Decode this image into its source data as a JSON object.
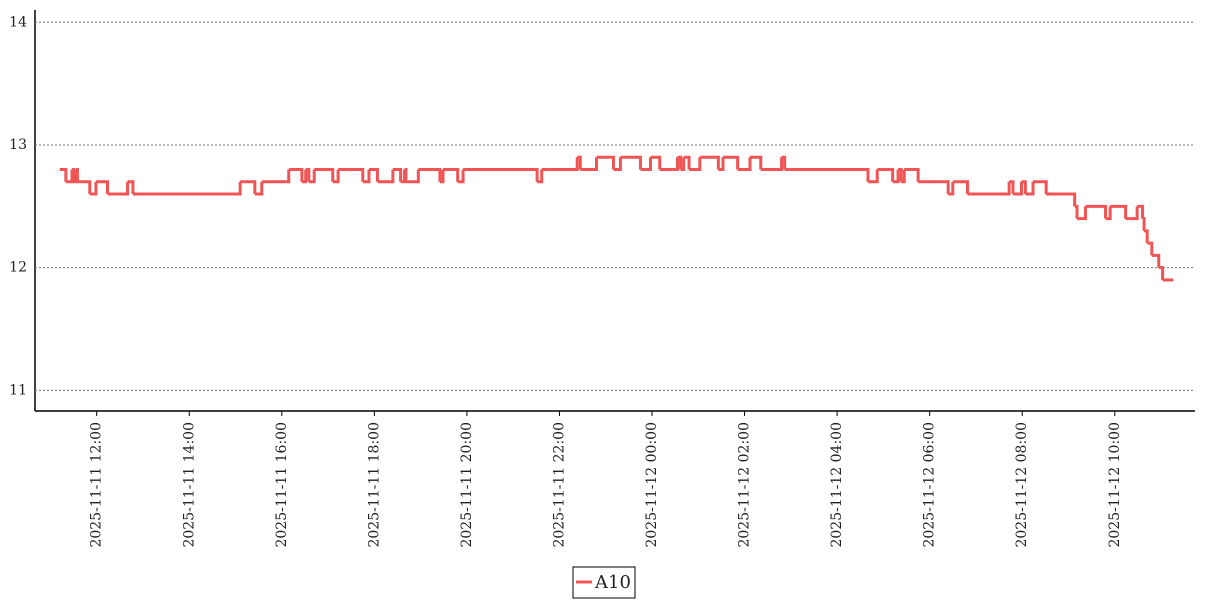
{
  "chart_data": {
    "type": "line",
    "step": "post",
    "series": [
      {
        "name": "A10",
        "color": "#f05454",
        "x": [
          "2025-11-11 11:12",
          "2025-11-11 11:20",
          "2025-11-11 11:28",
          "2025-11-11 11:30",
          "2025-11-11 11:33",
          "2025-11-11 11:35",
          "2025-11-11 11:51",
          "2025-11-11 11:59",
          "2025-11-11 12:14",
          "2025-11-11 12:40",
          "2025-11-11 12:47",
          "2025-11-11 15:06",
          "2025-11-11 15:25",
          "2025-11-11 15:34",
          "2025-11-11 16:09",
          "2025-11-11 16:26",
          "2025-11-11 16:31",
          "2025-11-11 16:35",
          "2025-11-11 16:42",
          "2025-11-11 17:06",
          "2025-11-11 17:13",
          "2025-11-11 17:45",
          "2025-11-11 17:53",
          "2025-11-11 18:04",
          "2025-11-11 18:24",
          "2025-11-11 18:34",
          "2025-11-11 18:39",
          "2025-11-11 18:41",
          "2025-11-11 18:57",
          "2025-11-11 19:25",
          "2025-11-11 19:29",
          "2025-11-11 19:48",
          "2025-11-11 19:55",
          "2025-11-11 21:31",
          "2025-11-11 21:37",
          "2025-11-11 22:23",
          "2025-11-11 22:27",
          "2025-11-11 22:48",
          "2025-11-11 23:10",
          "2025-11-11 23:19",
          "2025-11-11 23:45",
          "2025-11-11 23:58",
          "2025-11-12 00:10",
          "2025-11-12 00:33",
          "2025-11-12 00:37",
          "2025-11-12 00:41",
          "2025-11-12 00:48",
          "2025-11-12 01:02",
          "2025-11-12 01:26",
          "2025-11-12 01:32",
          "2025-11-12 01:51",
          "2025-11-12 02:07",
          "2025-11-12 02:21",
          "2025-11-12 02:48",
          "2025-11-12 02:52",
          "2025-11-12 04:40",
          "2025-11-12 04:52",
          "2025-11-12 05:12",
          "2025-11-12 05:19",
          "2025-11-12 05:23",
          "2025-11-12 05:27",
          "2025-11-12 05:45",
          "2025-11-12 06:24",
          "2025-11-12 06:30",
          "2025-11-12 06:49",
          "2025-11-12 07:43",
          "2025-11-12 07:48",
          "2025-11-12 07:59",
          "2025-11-12 08:04",
          "2025-11-12 08:14",
          "2025-11-12 08:31",
          "2025-11-12 09:08",
          "2025-11-12 09:11",
          "2025-11-12 09:22",
          "2025-11-12 09:48",
          "2025-11-12 09:54",
          "2025-11-12 10:14",
          "2025-11-12 10:29",
          "2025-11-12 10:36",
          "2025-11-12 10:38",
          "2025-11-12 10:42",
          "2025-11-12 10:48",
          "2025-11-12 10:57",
          "2025-11-12 11:02",
          "2025-11-12 11:16"
        ],
        "values": [
          12.8,
          12.7,
          12.8,
          12.7,
          12.8,
          12.7,
          12.6,
          12.7,
          12.6,
          12.7,
          12.6,
          12.7,
          12.6,
          12.7,
          12.8,
          12.7,
          12.8,
          12.7,
          12.8,
          12.7,
          12.8,
          12.7,
          12.8,
          12.7,
          12.8,
          12.7,
          12.8,
          12.7,
          12.8,
          12.7,
          12.8,
          12.7,
          12.8,
          12.7,
          12.8,
          12.9,
          12.8,
          12.9,
          12.8,
          12.9,
          12.8,
          12.9,
          12.8,
          12.9,
          12.8,
          12.9,
          12.8,
          12.9,
          12.8,
          12.9,
          12.8,
          12.9,
          12.8,
          12.9,
          12.8,
          12.7,
          12.8,
          12.7,
          12.8,
          12.7,
          12.8,
          12.7,
          12.6,
          12.7,
          12.6,
          12.7,
          12.6,
          12.7,
          12.6,
          12.7,
          12.6,
          12.5,
          12.4,
          12.5,
          12.4,
          12.5,
          12.4,
          12.5,
          12.4,
          12.3,
          12.2,
          12.1,
          12.0,
          11.9,
          11.9
        ]
      }
    ],
    "xlim": [
      "2025-11-11 10:40",
      "2025-11-12 11:44"
    ],
    "xticks": [
      "2025-11-11 12:00",
      "2025-11-11 14:00",
      "2025-11-11 16:00",
      "2025-11-11 18:00",
      "2025-11-11 20:00",
      "2025-11-11 22:00",
      "2025-11-12 00:00",
      "2025-11-12 02:00",
      "2025-11-12 04:00",
      "2025-11-12 06:00",
      "2025-11-12 08:00",
      "2025-11-12 10:00"
    ],
    "ylim": [
      10.84,
      14.1
    ],
    "yticks": [
      11,
      12,
      13,
      14
    ],
    "grid": true,
    "legend": "bottom"
  }
}
